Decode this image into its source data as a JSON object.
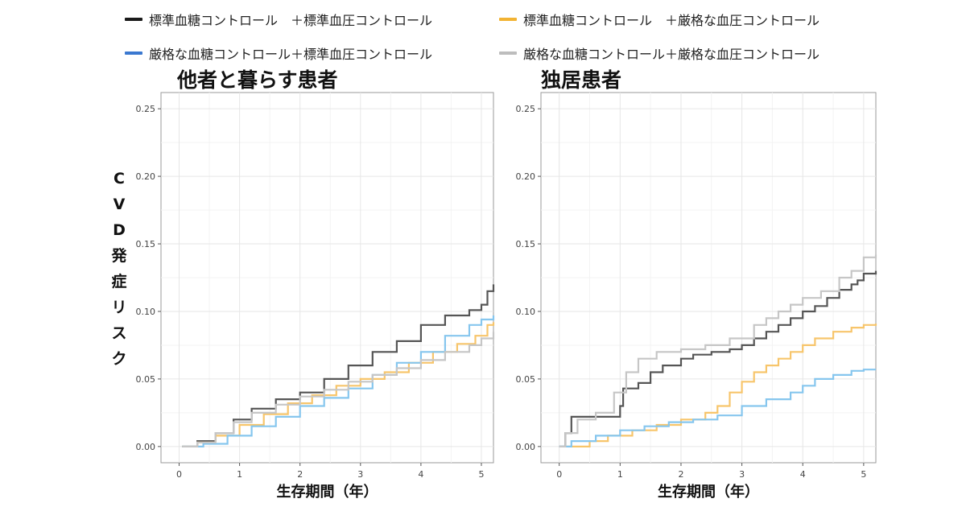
{
  "legend": {
    "items": [
      {
        "label": "標準血糖コントロール　＋標準血圧コントロール",
        "color": "#1a1a1a"
      },
      {
        "label": "標準血糖コントロール　＋厳格な血圧コントロール",
        "color": "#f2b333"
      },
      {
        "label": "厳格な血糖コントロール＋標準血圧コントロール",
        "color": "#3a78d0"
      },
      {
        "label": "厳格な血糖コントロール＋厳格な血圧コントロール",
        "color": "#bdbdbd"
      }
    ]
  },
  "ylabel": "CVD発症リスク",
  "chart_data": [
    {
      "type": "line",
      "title": "他者と暮らす患者",
      "xlabel": "生存期間（年）",
      "ylabel": "CVD発症リスク",
      "xlim": [
        -0.3,
        5.2
      ],
      "ylim": [
        -0.012,
        0.262
      ],
      "xticks": [
        "0",
        "1",
        "2",
        "3",
        "4",
        "5"
      ],
      "yticks": [
        "0.00",
        "0.05",
        "0.10",
        "0.15",
        "0.20",
        "0.25"
      ],
      "grid": true,
      "series": [
        {
          "name": "標準血糖コントロール　＋標準血圧コントロール",
          "color": "#555555",
          "x": [
            0.05,
            0.3,
            0.6,
            0.9,
            1.2,
            1.6,
            2.0,
            2.4,
            2.8,
            3.2,
            3.6,
            4.0,
            4.4,
            4.8,
            5.0,
            5.1,
            5.2
          ],
          "y": [
            0.0,
            0.004,
            0.01,
            0.02,
            0.028,
            0.035,
            0.04,
            0.05,
            0.06,
            0.07,
            0.078,
            0.09,
            0.097,
            0.101,
            0.105,
            0.115,
            0.12
          ]
        },
        {
          "name": "標準血糖コントロール　＋厳格な血圧コントロール",
          "color": "#f7c56b",
          "x": [
            0.05,
            0.3,
            0.6,
            1.0,
            1.4,
            1.8,
            2.2,
            2.6,
            3.0,
            3.4,
            3.8,
            4.2,
            4.6,
            4.9,
            5.1,
            5.2
          ],
          "y": [
            0.0,
            0.003,
            0.008,
            0.016,
            0.024,
            0.032,
            0.038,
            0.045,
            0.05,
            0.055,
            0.062,
            0.07,
            0.076,
            0.082,
            0.09,
            0.092
          ]
        },
        {
          "name": "厳格な血糖コントロール＋標準血圧コントロール",
          "color": "#86c6ee",
          "x": [
            0.05,
            0.4,
            0.8,
            1.2,
            1.6,
            2.0,
            2.4,
            2.8,
            3.2,
            3.6,
            4.0,
            4.4,
            4.8,
            5.0,
            5.2
          ],
          "y": [
            0.0,
            0.002,
            0.008,
            0.015,
            0.022,
            0.03,
            0.036,
            0.043,
            0.053,
            0.062,
            0.07,
            0.082,
            0.09,
            0.094,
            0.097
          ]
        },
        {
          "name": "厳格な血糖コントロール＋厳格な血圧コントロール",
          "color": "#c6c6c6",
          "x": [
            0.05,
            0.3,
            0.6,
            0.9,
            1.2,
            1.6,
            2.0,
            2.4,
            2.8,
            3.2,
            3.6,
            4.0,
            4.4,
            4.8,
            5.0,
            5.2
          ],
          "y": [
            0.0,
            0.003,
            0.01,
            0.018,
            0.025,
            0.031,
            0.037,
            0.042,
            0.048,
            0.053,
            0.058,
            0.064,
            0.07,
            0.075,
            0.08,
            0.085
          ]
        }
      ]
    },
    {
      "type": "line",
      "title": "独居患者",
      "xlabel": "生存期間（年）",
      "ylabel": "",
      "xlim": [
        -0.3,
        5.2
      ],
      "ylim": [
        -0.012,
        0.262
      ],
      "xticks": [
        "0",
        "1",
        "2",
        "3",
        "4",
        "5"
      ],
      "yticks": [
        "0.00",
        "0.05",
        "0.10",
        "0.15",
        "0.20",
        "0.25"
      ],
      "grid": true,
      "series": [
        {
          "name": "標準血糖コントロール　＋標準血圧コントロール",
          "color": "#555555",
          "x": [
            0.0,
            0.1,
            0.2,
            0.6,
            1.0,
            1.05,
            1.3,
            1.5,
            1.7,
            2.0,
            2.2,
            2.5,
            2.8,
            3.0,
            3.2,
            3.4,
            3.6,
            3.8,
            4.0,
            4.2,
            4.4,
            4.6,
            4.8,
            4.9,
            5.0,
            5.2
          ],
          "y": [
            0.0,
            0.01,
            0.022,
            0.022,
            0.03,
            0.043,
            0.047,
            0.055,
            0.06,
            0.065,
            0.068,
            0.07,
            0.072,
            0.075,
            0.08,
            0.085,
            0.09,
            0.095,
            0.1,
            0.104,
            0.11,
            0.116,
            0.12,
            0.123,
            0.128,
            0.13
          ]
        },
        {
          "name": "標準血糖コントロール　＋厳格な血圧コントロール",
          "color": "#f7c56b",
          "x": [
            0.1,
            0.5,
            0.8,
            1.2,
            1.6,
            2.0,
            2.4,
            2.6,
            2.8,
            3.0,
            3.2,
            3.4,
            3.6,
            3.8,
            4.0,
            4.2,
            4.5,
            4.8,
            5.0,
            5.2
          ],
          "y": [
            0.0,
            0.004,
            0.008,
            0.012,
            0.016,
            0.02,
            0.025,
            0.03,
            0.04,
            0.048,
            0.055,
            0.06,
            0.065,
            0.07,
            0.075,
            0.08,
            0.085,
            0.088,
            0.09,
            0.091
          ]
        },
        {
          "name": "厳格な血糖コントロール＋標準血圧コントロール",
          "color": "#86c6ee",
          "x": [
            0.0,
            0.2,
            0.6,
            1.0,
            1.4,
            1.8,
            2.2,
            2.6,
            3.0,
            3.4,
            3.8,
            4.0,
            4.2,
            4.5,
            4.8,
            5.0,
            5.2
          ],
          "y": [
            0.0,
            0.004,
            0.008,
            0.012,
            0.015,
            0.018,
            0.02,
            0.023,
            0.03,
            0.035,
            0.04,
            0.045,
            0.05,
            0.053,
            0.056,
            0.057,
            0.057
          ]
        },
        {
          "name": "厳格な血糖コントロール＋厳格な血圧コントロール",
          "color": "#c6c6c6",
          "x": [
            0.0,
            0.1,
            0.3,
            0.6,
            0.9,
            1.1,
            1.3,
            1.6,
            2.0,
            2.4,
            2.8,
            3.2,
            3.4,
            3.6,
            3.8,
            4.0,
            4.3,
            4.6,
            4.8,
            5.0,
            5.2
          ],
          "y": [
            0.0,
            0.01,
            0.02,
            0.025,
            0.04,
            0.055,
            0.065,
            0.07,
            0.072,
            0.075,
            0.08,
            0.09,
            0.095,
            0.1,
            0.105,
            0.11,
            0.115,
            0.125,
            0.13,
            0.14,
            0.142
          ]
        }
      ]
    }
  ]
}
